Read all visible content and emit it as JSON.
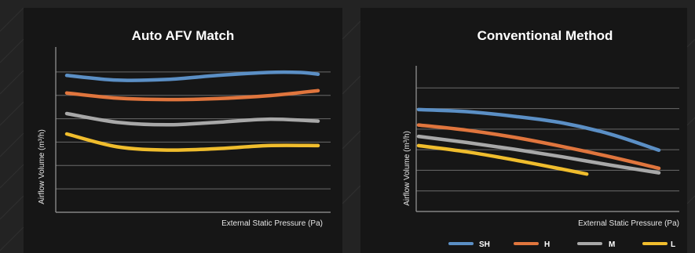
{
  "colors": {
    "background": "#232323",
    "panel": "#161616",
    "grid": "#6a6a6a",
    "axis": "#9a9a9a",
    "text": "#ffffff"
  },
  "chart_data": [
    {
      "type": "line",
      "title": "Auto AFV Match",
      "xlabel": "External Static Pressure (Pa)",
      "ylabel": "Airflow Volume (m³/h)",
      "xlim": [
        0,
        1
      ],
      "ylim": [
        0,
        7
      ],
      "grid": "horizontal",
      "series": [
        {
          "name": "SH",
          "color": "#5b8fc5",
          "x": [
            0,
            0.2,
            0.4,
            0.6,
            0.8,
            0.93,
            1
          ],
          "y": [
            5.85,
            5.65,
            5.68,
            5.85,
            5.98,
            5.98,
            5.9
          ]
        },
        {
          "name": "H",
          "color": "#e0753d",
          "x": [
            0,
            0.2,
            0.4,
            0.6,
            0.8,
            1
          ],
          "y": [
            5.1,
            4.88,
            4.82,
            4.86,
            4.98,
            5.2
          ]
        },
        {
          "name": "M",
          "color": "#a8a8a8",
          "x": [
            0,
            0.2,
            0.4,
            0.6,
            0.8,
            1
          ],
          "y": [
            4.22,
            3.85,
            3.74,
            3.85,
            3.98,
            3.9
          ]
        },
        {
          "name": "L",
          "color": "#f0bd2d",
          "x": [
            0,
            0.2,
            0.4,
            0.6,
            0.8,
            1
          ],
          "y": [
            3.35,
            2.8,
            2.66,
            2.72,
            2.85,
            2.85
          ]
        }
      ]
    },
    {
      "type": "line",
      "title": "Conventional Method",
      "xlabel": "External Static Pressure (Pa)",
      "ylabel": "Airflow Volume (m³/h)",
      "xlim": [
        0,
        1
      ],
      "ylim": [
        0,
        7
      ],
      "grid": "horizontal",
      "legend_position": "bottom-right",
      "series": [
        {
          "name": "SH",
          "color": "#5b8fc5",
          "x": [
            0,
            0.2,
            0.4,
            0.6,
            0.8,
            1
          ],
          "y": [
            4.95,
            4.85,
            4.62,
            4.3,
            3.75,
            2.98
          ]
        },
        {
          "name": "H",
          "color": "#e0753d",
          "x": [
            0,
            0.2,
            0.4,
            0.6,
            0.8,
            1
          ],
          "y": [
            4.2,
            3.95,
            3.6,
            3.15,
            2.65,
            2.1
          ]
        },
        {
          "name": "M",
          "color": "#a8a8a8",
          "x": [
            0,
            0.2,
            0.4,
            0.6,
            0.8,
            1
          ],
          "y": [
            3.65,
            3.35,
            3.02,
            2.65,
            2.25,
            1.88
          ]
        },
        {
          "name": "L",
          "color": "#f0bd2d",
          "x": [
            0,
            0.2,
            0.4,
            0.6,
            0.7
          ],
          "y": [
            3.2,
            2.9,
            2.5,
            2.05,
            1.82
          ]
        }
      ]
    }
  ]
}
